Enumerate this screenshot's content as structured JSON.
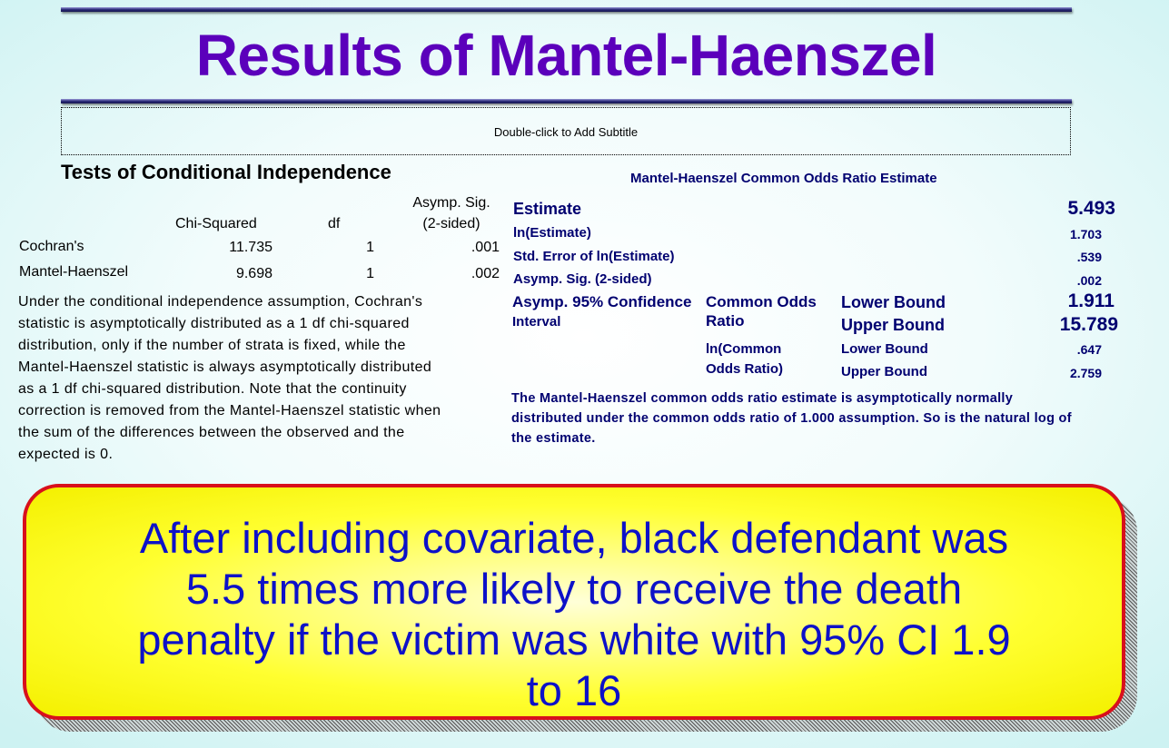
{
  "title": "Results of Mantel-Haenszel",
  "subtitle_placeholder": "Double-click to Add Subtitle",
  "independence": {
    "heading": "Tests of Conditional Independence",
    "col_chi": "Chi-Squared",
    "col_df": "df",
    "col_sig_1": "Asymp. Sig.",
    "col_sig_2": "(2-sided)",
    "rows": [
      {
        "label": "Cochran's",
        "chi": "11.735",
        "df": "1",
        "sig": ".001"
      },
      {
        "label": "Mantel-Haenszel",
        "chi": "9.698",
        "df": "1",
        "sig": ".002"
      }
    ],
    "note_lines": [
      "Under the conditional independence assumption, Cochran's",
      "statistic is asymptotically distributed as a 1 df chi-squared",
      "distribution, only if the number of strata is fixed, while the",
      "Mantel-Haenszel statistic is always asymptotically distributed",
      "as a 1 df chi-squared distribution. Note that the continuity",
      "correction is removed from the Mantel-Haenszel statistic when",
      "the sum of the differences between the observed and the",
      "expected is 0."
    ]
  },
  "odds": {
    "heading": "Mantel-Haenszel Common Odds Ratio Estimate",
    "estimate_label": "Estimate",
    "estimate": "5.493",
    "ln_label": "ln(Estimate)",
    "ln": "1.703",
    "se_label": "Std. Error of ln(Estimate)",
    "se": ".539",
    "sig_label": "Asymp. Sig. (2-sided)",
    "sig": ".002",
    "ci_label_1": "Asymp. 95% Confidence",
    "ci_label_2": "Interval",
    "common_label_1": "Common Odds",
    "common_label_2": "Ratio",
    "ln_common_label_1": "ln(Common",
    "ln_common_label_2": "Odds Ratio)",
    "lower_bound": "Lower Bound",
    "upper_bound": "Upper Bound",
    "common_lower": "1.911",
    "common_upper": "15.789",
    "ln_lower": ".647",
    "ln_upper": "2.759",
    "note_lines": [
      "The Mantel-Haenszel common odds ratio estimate is asymptotically normally",
      "distributed under the common odds ratio of 1.000 assumption. So is the natural log of",
      "the estimate."
    ]
  },
  "callout_lines": [
    "After including covariate, black defendant was",
    "5.5 times more likely to receive the death",
    "penalty if the victim was white with 95% CI 1.9",
    "to 16"
  ],
  "colors": {
    "title": "#5b00bb",
    "table_text": "#000070",
    "callout_text": "#0d11c8",
    "callout_border": "#d8101c",
    "callout_fill": "#ffff30"
  }
}
